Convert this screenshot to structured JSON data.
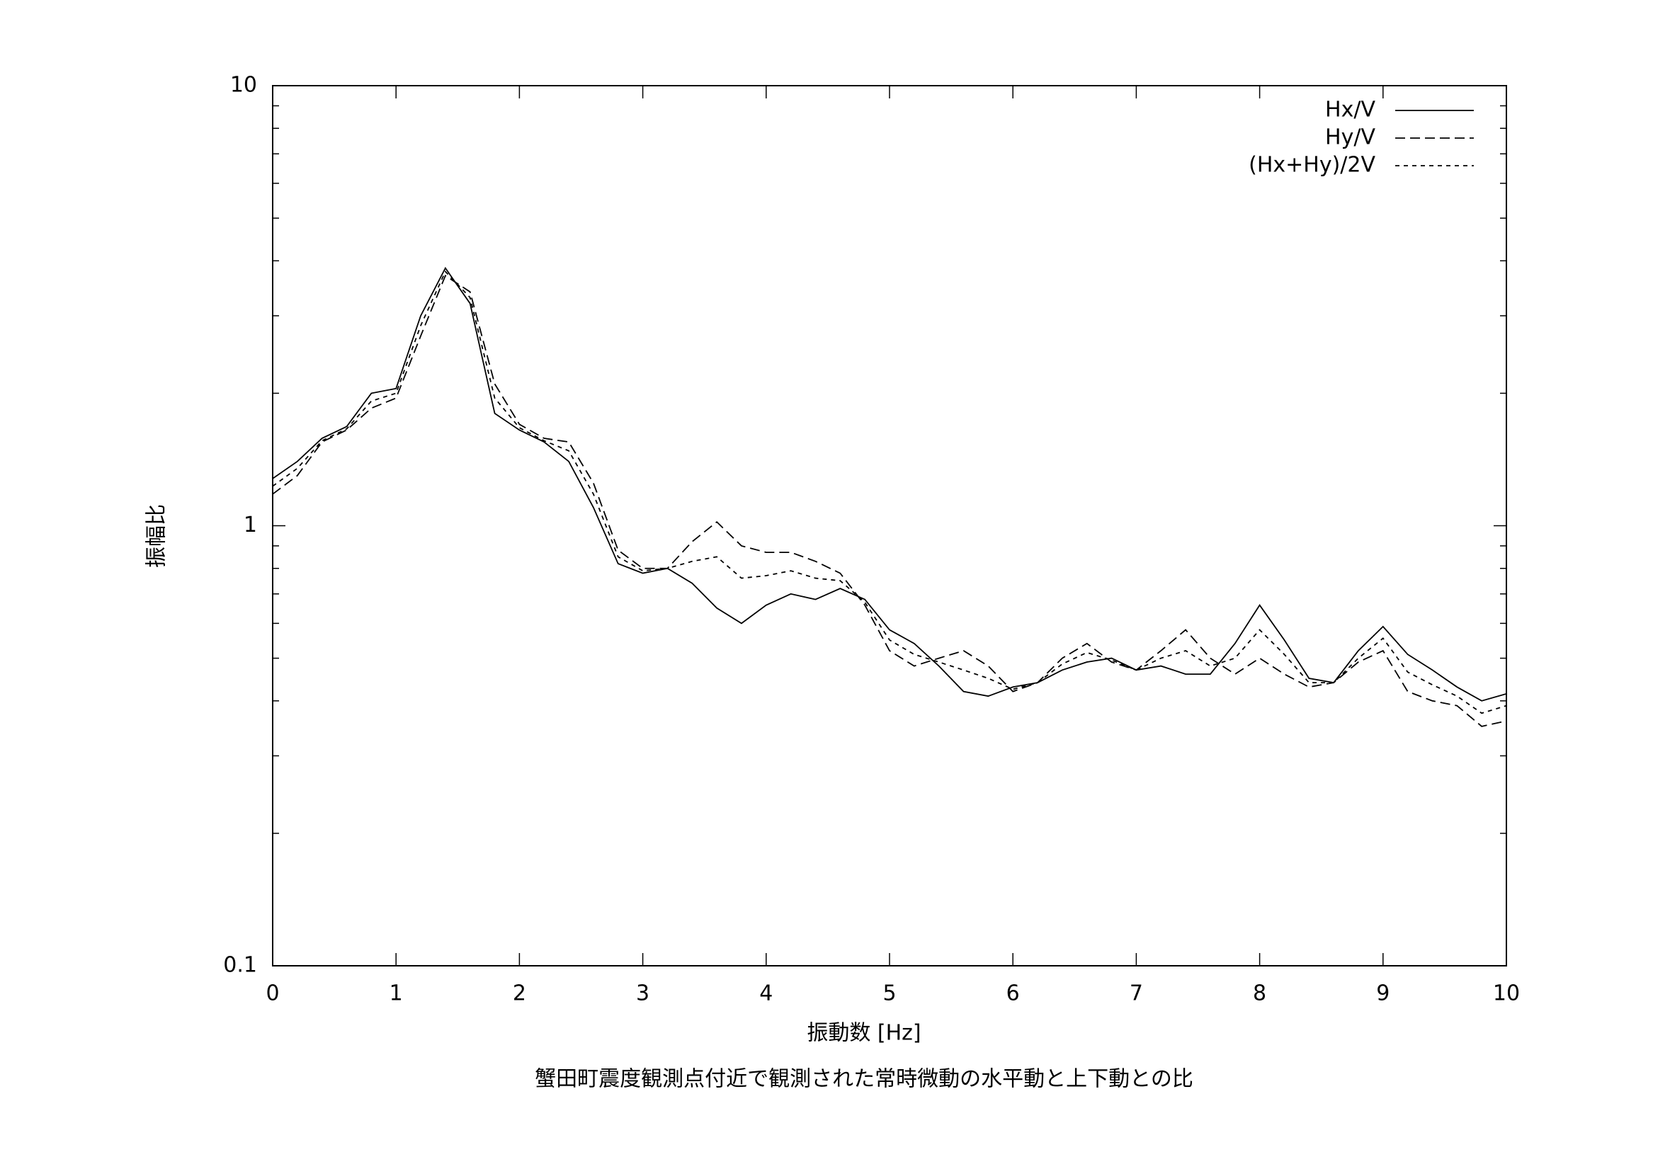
{
  "chart_data": {
    "type": "line",
    "title": "蟹田町震度観測点付近で観測された常時微動の水平動と上下動との比",
    "x_label": "振動数 [Hz]",
    "y_label": "振幅比",
    "x": [
      0,
      0.2,
      0.4,
      0.6,
      0.8,
      1,
      1.2,
      1.4,
      1.6,
      1.8,
      2,
      2.2,
      2.4,
      2.6,
      2.8,
      3,
      3.2,
      3.4,
      3.6,
      3.8,
      4,
      4.2,
      4.4,
      4.6,
      4.8,
      5,
      5.2,
      5.4,
      5.6,
      5.8,
      6,
      6.2,
      6.4,
      6.6,
      6.8,
      7,
      7.2,
      7.4,
      7.6,
      7.8,
      8,
      8.2,
      8.4,
      8.6,
      8.8,
      9,
      9.2,
      9.4,
      9.6,
      9.8,
      10
    ],
    "series": [
      {
        "name": "Hx/V",
        "color": "#000000",
        "values": [
          1.28,
          1.4,
          1.58,
          1.68,
          2.0,
          2.05,
          3.0,
          3.85,
          3.2,
          1.8,
          1.65,
          1.55,
          1.4,
          1.1,
          0.82,
          0.78,
          0.8,
          0.74,
          0.65,
          0.6,
          0.66,
          0.7,
          0.68,
          0.72,
          0.68,
          0.58,
          0.54,
          0.48,
          0.42,
          0.41,
          0.43,
          0.44,
          0.47,
          0.49,
          0.5,
          0.47,
          0.48,
          0.46,
          0.46,
          0.54,
          0.66,
          0.55,
          0.45,
          0.44,
          0.52,
          0.59,
          0.51,
          0.47,
          0.43,
          0.4,
          0.415
        ]
      },
      {
        "name": "Hy/V",
        "color": "#000000",
        "values": [
          1.18,
          1.3,
          1.55,
          1.65,
          1.85,
          1.95,
          2.7,
          3.7,
          3.4,
          2.1,
          1.7,
          1.58,
          1.55,
          1.25,
          0.88,
          0.8,
          0.8,
          0.92,
          1.02,
          0.9,
          0.87,
          0.87,
          0.83,
          0.78,
          0.66,
          0.52,
          0.48,
          0.5,
          0.52,
          0.48,
          0.42,
          0.44,
          0.5,
          0.54,
          0.49,
          0.47,
          0.52,
          0.58,
          0.5,
          0.46,
          0.5,
          0.46,
          0.43,
          0.44,
          0.49,
          0.52,
          0.42,
          0.4,
          0.39,
          0.35,
          0.36
        ]
      },
      {
        "name": "(Hx+Hy)/2V",
        "color": "#000000",
        "values": [
          1.23,
          1.35,
          1.56,
          1.66,
          1.92,
          2.0,
          2.85,
          3.78,
          3.3,
          1.95,
          1.67,
          1.56,
          1.48,
          1.18,
          0.85,
          0.79,
          0.8,
          0.83,
          0.85,
          0.76,
          0.77,
          0.79,
          0.76,
          0.75,
          0.67,
          0.55,
          0.51,
          0.49,
          0.47,
          0.45,
          0.425,
          0.44,
          0.485,
          0.515,
          0.495,
          0.47,
          0.5,
          0.52,
          0.48,
          0.5,
          0.58,
          0.51,
          0.44,
          0.44,
          0.5,
          0.555,
          0.465,
          0.435,
          0.41,
          0.375,
          0.39
        ]
      }
    ],
    "xlim": [
      0,
      10
    ],
    "xticks": [
      0,
      1,
      2,
      3,
      4,
      5,
      6,
      7,
      8,
      9,
      10
    ],
    "ylim": [
      0.1,
      10
    ],
    "yticks": [
      0.1,
      1,
      10
    ],
    "yminorticks": [
      0.2,
      0.3,
      0.4,
      0.5,
      0.6,
      0.7,
      0.8,
      0.9,
      2,
      3,
      4,
      5,
      6,
      7,
      8,
      9
    ],
    "ylog": true,
    "grid": false,
    "legend": "upper right"
  }
}
